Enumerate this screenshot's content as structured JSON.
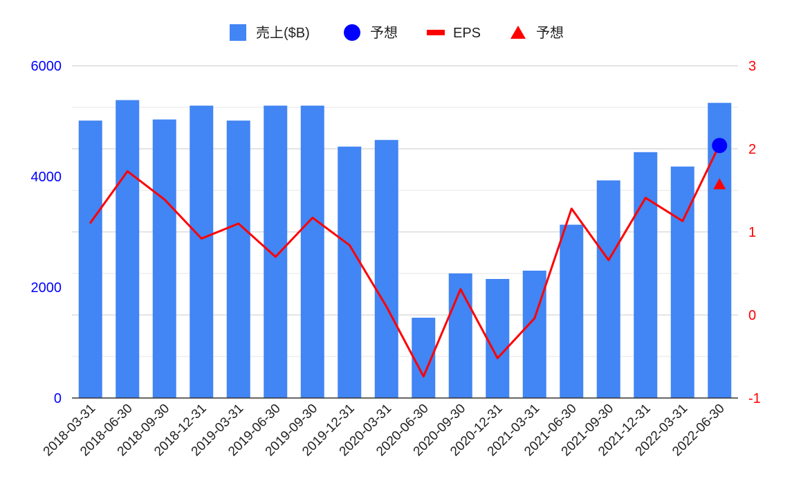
{
  "chart_data": {
    "type": "bar",
    "categories": [
      "2018-03-31",
      "2018-06-30",
      "2018-09-30",
      "2018-12-31",
      "2019-03-31",
      "2019-06-30",
      "2019-09-30",
      "2019-12-31",
      "2020-03-31",
      "2020-06-30",
      "2020-09-30",
      "2020-12-31",
      "2021-03-31",
      "2021-06-30",
      "2021-09-30",
      "2021-12-31",
      "2022-03-31",
      "2022-06-30"
    ],
    "series": [
      {
        "name": "売上($B)",
        "type": "bar",
        "axis": "left",
        "color": "#4285f4",
        "values": [
          5010,
          5380,
          5030,
          5280,
          5010,
          5280,
          5280,
          4540,
          4660,
          1450,
          2250,
          2150,
          2300,
          3130,
          3930,
          4440,
          4180,
          5330
        ]
      },
      {
        "name": "予想",
        "type": "point",
        "marker": "circle",
        "axis": "left",
        "color": "#0000ff",
        "points": [
          {
            "x": "2022-06-30",
            "y": 4560
          }
        ]
      },
      {
        "name": "EPS",
        "type": "line",
        "axis": "right",
        "color": "#ff0000",
        "values": [
          1.11,
          1.73,
          1.39,
          0.92,
          1.1,
          0.7,
          1.17,
          0.84,
          0.1,
          -0.74,
          0.31,
          -0.52,
          -0.04,
          1.28,
          0.66,
          1.41,
          1.13,
          2.05
        ]
      },
      {
        "name": "予想",
        "type": "point",
        "marker": "triangle",
        "axis": "right",
        "color": "#ff0000",
        "points": [
          {
            "x": "2022-06-30",
            "y": 1.58
          }
        ]
      }
    ],
    "y_left": {
      "range": [
        0,
        6000
      ],
      "ticks": [
        "0",
        "2000",
        "4000",
        "6000"
      ],
      "color": "#0000ff"
    },
    "y_right": {
      "range": [
        -1,
        3
      ],
      "ticks": [
        "-1",
        "0",
        "1",
        "2",
        "3"
      ],
      "color": "#ff0000"
    },
    "legend_placement": "top-center",
    "grid": true
  }
}
